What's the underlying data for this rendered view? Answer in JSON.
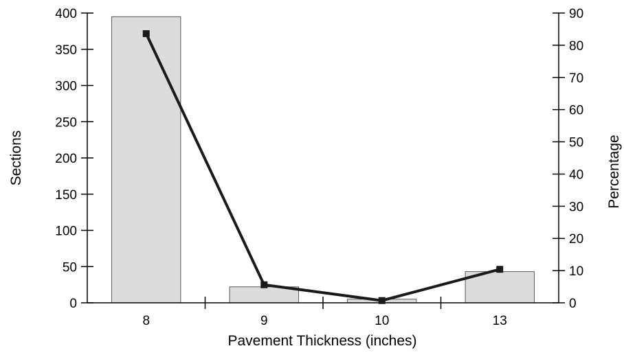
{
  "chart_data": {
    "type": "bar",
    "categories": [
      "8",
      "9",
      "10",
      "13"
    ],
    "xlabel": "Pavement Thickness (inches)",
    "ylabel": "Sections",
    "y2label": "Percentage",
    "ylim": [
      0,
      400
    ],
    "y2lim": [
      0,
      90
    ],
    "yticks": [
      0,
      50,
      100,
      150,
      200,
      250,
      300,
      350,
      400
    ],
    "y2ticks": [
      0,
      10,
      20,
      30,
      40,
      50,
      60,
      70,
      80,
      90
    ],
    "grid": false,
    "legend": "none",
    "series": [
      {
        "type": "bar",
        "axis": "left",
        "values": [
          395,
          22,
          5,
          43
        ],
        "color": "#dcdcdc"
      },
      {
        "type": "line",
        "axis": "right",
        "marker": "square",
        "values": [
          83.6,
          5.6,
          0.7,
          10.4
        ],
        "color": "#1a1a1a"
      }
    ]
  }
}
